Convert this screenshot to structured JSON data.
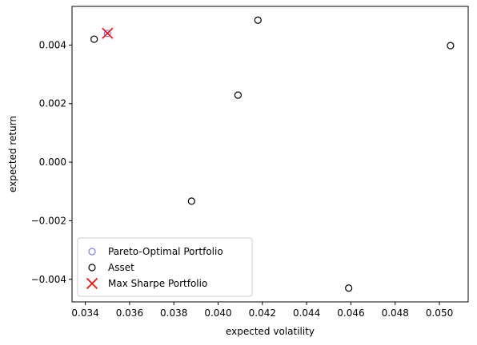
{
  "chart_data": {
    "type": "scatter",
    "title": "",
    "xlabel": "expected volatility",
    "ylabel": "expected return",
    "xlim": [
      0.0334,
      0.0513
    ],
    "ylim": [
      -0.00477,
      0.00532
    ],
    "xticks": [
      0.034,
      0.036,
      0.038,
      0.04,
      0.042,
      0.044,
      0.046,
      0.048,
      0.05
    ],
    "xtick_labels": [
      "0.034",
      "0.036",
      "0.038",
      "0.040",
      "0.042",
      "0.044",
      "0.046",
      "0.048",
      "0.050"
    ],
    "yticks": [
      -0.004,
      -0.002,
      0.0,
      0.002,
      0.004
    ],
    "ytick_labels": [
      "−0.004",
      "−0.002",
      "0.000",
      "0.002",
      "0.004"
    ],
    "grid": false,
    "legend_position": "lower-left",
    "series": [
      {
        "name": "Pareto-Optimal Portfolio",
        "marker": "hollow-circle",
        "color": "#7b7bf0",
        "points": [
          {
            "x": 0.035,
            "y": 0.0044
          }
        ]
      },
      {
        "name": "Asset",
        "marker": "hollow-circle",
        "color": "#000000",
        "points": [
          {
            "x": 0.0344,
            "y": 0.0042
          },
          {
            "x": 0.0418,
            "y": 0.00485
          },
          {
            "x": 0.0505,
            "y": 0.00398
          },
          {
            "x": 0.0409,
            "y": 0.00229
          },
          {
            "x": 0.0388,
            "y": -0.00133
          },
          {
            "x": 0.0459,
            "y": -0.0043
          }
        ]
      },
      {
        "name": "Max Sharpe Portfolio",
        "marker": "x",
        "color": "#ff0000",
        "points": [
          {
            "x": 0.035,
            "y": 0.0044
          }
        ]
      }
    ]
  }
}
